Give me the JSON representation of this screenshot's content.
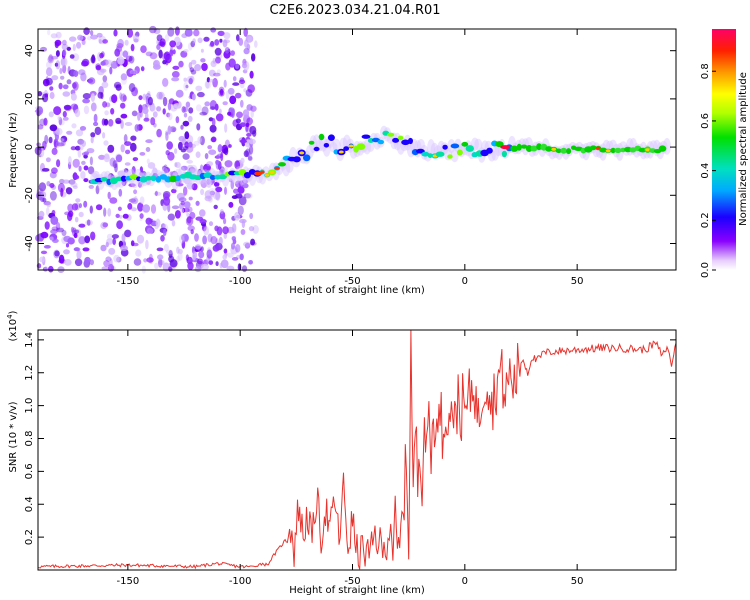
{
  "title": "C2E6.2023.034.21.04.R01",
  "chart_data": [
    {
      "type": "heatmap",
      "xlabel": "Height of straight line (km)",
      "ylabel": "Frequency (Hz)",
      "xlim": [
        -190,
        94
      ],
      "ylim": [
        -51,
        49
      ],
      "xticks": [
        -150,
        -100,
        -50,
        0,
        50
      ],
      "yticks": [
        -40,
        -20,
        0,
        20,
        40
      ],
      "trace": {
        "x": [
          -165,
          -160,
          -150,
          -140,
          -130,
          -120,
          -110,
          -100,
          -95,
          -90,
          -85,
          -80,
          -75,
          -70,
          -65,
          -60,
          -55,
          -50,
          -45,
          -40,
          -35,
          -30,
          -25,
          -20,
          -15,
          -10,
          -5,
          0,
          5,
          10,
          15,
          20,
          30,
          40,
          50,
          60,
          70,
          80,
          90
        ],
        "y": [
          -14,
          -14,
          -13,
          -13,
          -13,
          -12,
          -12,
          -11,
          -11,
          -11,
          -10,
          -7,
          -4,
          -2,
          2,
          2,
          -1,
          0,
          2,
          3,
          4,
          3,
          1,
          -1,
          -2,
          -2,
          -2,
          -1,
          -1,
          -1,
          -1,
          0,
          0,
          -1,
          -1,
          -1,
          -1,
          -1,
          -1
        ]
      },
      "noise_region": [
        -190,
        -95
      ],
      "colorbar": {
        "label": "Normalized spectral amplitude",
        "ticks": [
          "0.0",
          "0.2",
          "0.4",
          "0.6",
          "0.8"
        ],
        "range": [
          0,
          0.97
        ]
      }
    },
    {
      "type": "line",
      "xlabel": "Height of straight line (km)",
      "ylabel": "SNR (10 * v/v)",
      "multiplier": "(x10",
      "multiplier_exp": "4",
      "multiplier_close": ")",
      "xlim": [
        -190,
        94
      ],
      "ylim": [
        0,
        1.46
      ],
      "xticks": [
        -150,
        -100,
        -50,
        0,
        50
      ],
      "yticks": [
        0.2,
        0.4,
        0.6,
        0.8,
        1.0,
        1.2,
        1.4
      ],
      "color": "#e8332d",
      "series": {
        "x": [
          -190,
          -150,
          -120,
          -110,
          -100,
          -95,
          -90,
          -88,
          -85,
          -80,
          -78,
          -76,
          -74,
          -72,
          -70,
          -68,
          -66,
          -64,
          -62,
          -60,
          -58,
          -56,
          -54,
          -52,
          -50,
          -48,
          -45,
          -42,
          -40,
          -36,
          -33,
          -32,
          -31,
          -30,
          -28,
          -26,
          -25,
          -24,
          -23,
          -22,
          -21,
          -20,
          -19,
          -18,
          -17,
          -16,
          -15,
          -14,
          -13,
          -12,
          -11,
          -10,
          -9,
          -8,
          -7,
          -6,
          -5,
          -4,
          -3,
          -2,
          -1,
          0,
          2,
          4,
          6,
          8,
          10,
          12,
          14,
          16,
          18,
          20,
          22,
          24,
          26,
          28,
          30,
          32,
          35,
          40,
          50,
          60,
          70,
          80,
          85,
          88,
          90,
          92,
          94
        ],
        "y": [
          0.02,
          0.03,
          0.02,
          0.04,
          0.02,
          0.02,
          0.04,
          0.03,
          0.09,
          0.18,
          0.3,
          0.12,
          0.4,
          0.2,
          0.35,
          0.16,
          0.45,
          0.2,
          0.38,
          0.22,
          0.44,
          0.18,
          0.5,
          0.14,
          0.3,
          0.1,
          0.12,
          0.08,
          0.22,
          0.1,
          0.3,
          0.12,
          0.34,
          0.05,
          0.25,
          0.7,
          0.15,
          1.46,
          0.4,
          0.9,
          0.55,
          0.8,
          0.55,
          0.95,
          0.65,
          1.0,
          0.7,
          0.9,
          0.95,
          0.75,
          1.05,
          0.8,
          0.95,
          1.0,
          0.85,
          1.1,
          0.95,
          0.85,
          1.12,
          0.9,
          1.02,
          0.95,
          1.05,
          1.15,
          0.9,
          1.1,
          1.18,
          1.0,
          1.12,
          1.22,
          1.05,
          1.2,
          1.12,
          1.25,
          1.28,
          1.2,
          1.3,
          1.27,
          1.32,
          1.33,
          1.34,
          1.35,
          1.35,
          1.34,
          1.38,
          1.3,
          1.36,
          1.25,
          1.38
        ]
      }
    }
  ]
}
